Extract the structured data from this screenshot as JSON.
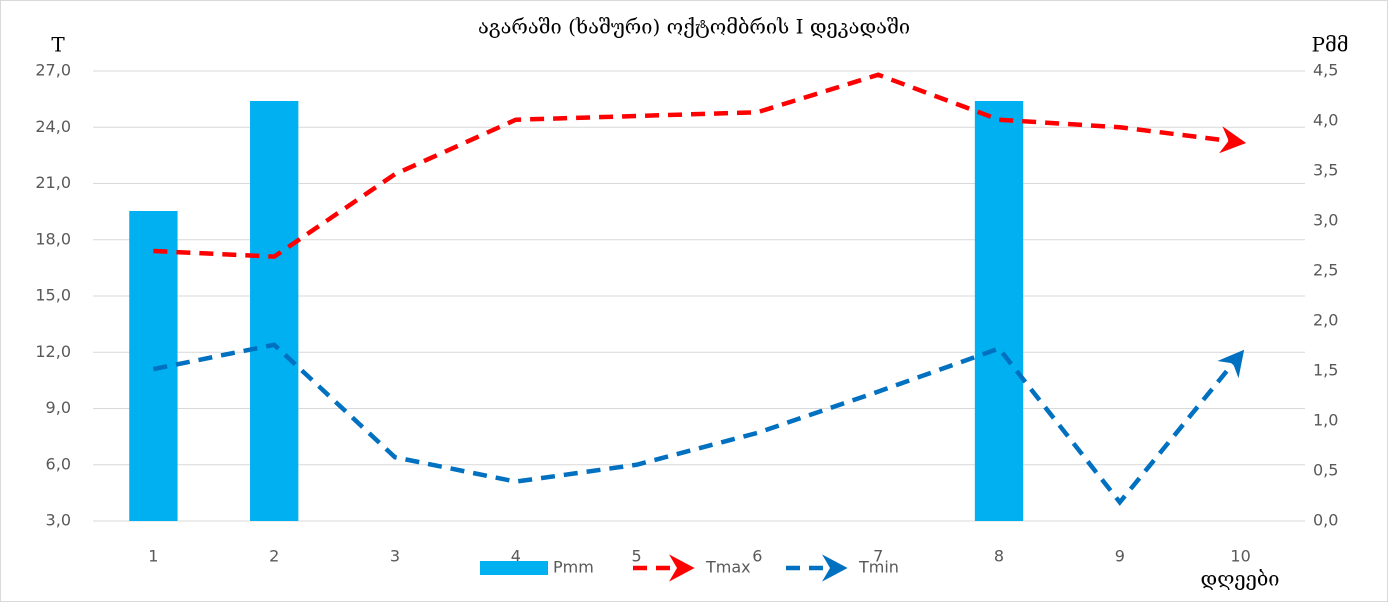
{
  "chart_data": {
    "type": "bar-line",
    "title": "აგარაში (ხაშური) ოქტომბრის I დეკადაში",
    "ylabel": "T",
    "y2label": "Pმმ",
    "xlabel": "დღეები",
    "categories": [
      "1",
      "2",
      "3",
      "4",
      "5",
      "6",
      "7",
      "8",
      "9",
      "10"
    ],
    "series": [
      {
        "name": "Pmm",
        "type": "bar",
        "axis": "y2",
        "color": "#00b0f0",
        "values": [
          3.1,
          4.2,
          0,
          0,
          0,
          0,
          0,
          4.2,
          0,
          0
        ]
      },
      {
        "name": "Tmax",
        "type": "line",
        "color": "#ff0000",
        "values": [
          17.4,
          17.1,
          21.5,
          24.4,
          24.6,
          24.8,
          26.8,
          24.4,
          24.0,
          23.2
        ]
      },
      {
        "name": "Tmin",
        "type": "line",
        "color": "#0070c0",
        "values": [
          11.1,
          12.4,
          6.4,
          5.1,
          6.0,
          7.7,
          9.9,
          12.2,
          4.0,
          11.9
        ]
      }
    ],
    "ylim": [
      3,
      27
    ],
    "yticks": [
      {
        "value": 3,
        "label": "3,0"
      },
      {
        "value": 6,
        "label": "6,0"
      },
      {
        "value": 9,
        "label": "9,0"
      },
      {
        "value": 12,
        "label": "12,0"
      },
      {
        "value": 15,
        "label": "15,0"
      },
      {
        "value": 18,
        "label": "18,0"
      },
      {
        "value": 21,
        "label": "21,0"
      },
      {
        "value": 24,
        "label": "24,0"
      },
      {
        "value": 27,
        "label": "27,0"
      }
    ],
    "y2lim": [
      0,
      4.5
    ],
    "y2ticks": [
      {
        "value": 0,
        "label": "0,0"
      },
      {
        "value": 0.5,
        "label": "0,5"
      },
      {
        "value": 1,
        "label": "1,0"
      },
      {
        "value": 1.5,
        "label": "1,5"
      },
      {
        "value": 2,
        "label": "2,0"
      },
      {
        "value": 2.5,
        "label": "2,5"
      },
      {
        "value": 3,
        "label": "3,0"
      },
      {
        "value": 3.5,
        "label": "3,5"
      },
      {
        "value": 4,
        "label": "4,0"
      },
      {
        "value": 4.5,
        "label": "4,5"
      }
    ],
    "grid": true,
    "legend": "bottom"
  }
}
